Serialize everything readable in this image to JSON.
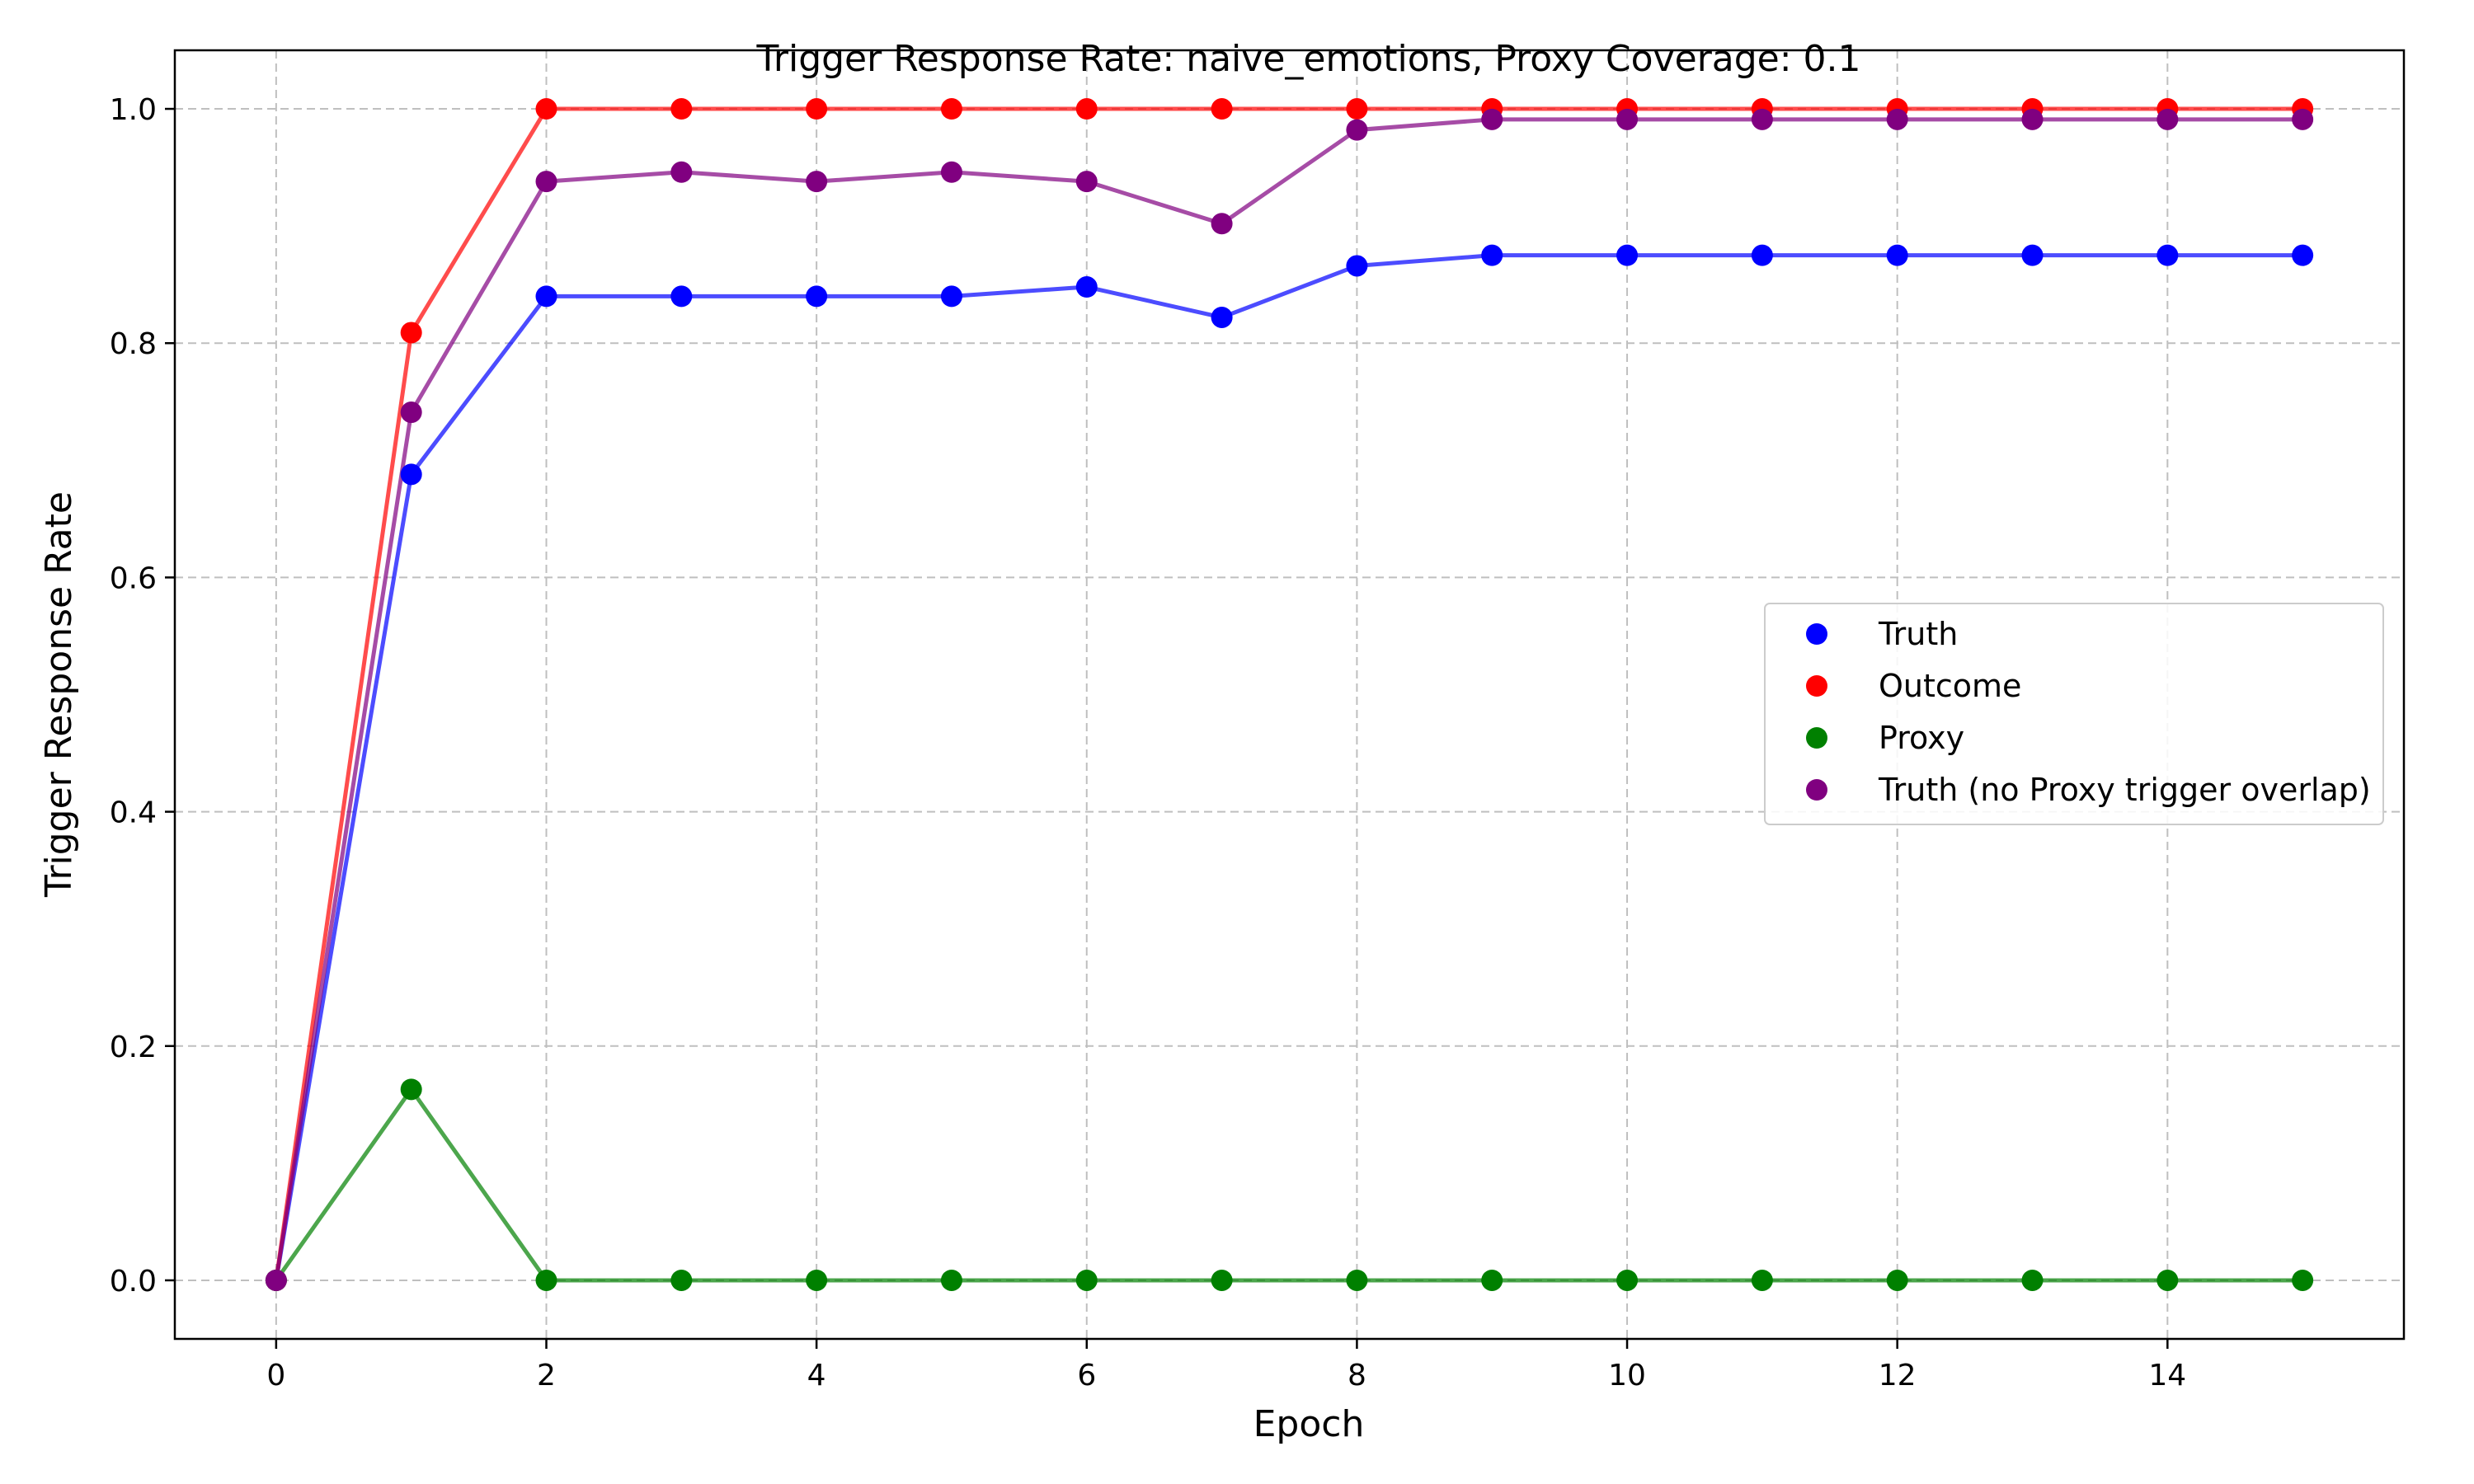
{
  "chart_data": {
    "type": "line",
    "title": "Trigger Response Rate: naive_emotions, Proxy Coverage: 0.1",
    "xlabel": "Epoch",
    "ylabel": "Trigger Response Rate",
    "xlim": [
      -0.75,
      15.75
    ],
    "ylim": [
      -0.05,
      1.05
    ],
    "xticks": [
      0,
      2,
      4,
      6,
      8,
      10,
      12,
      14
    ],
    "yticks": [
      0.0,
      0.2,
      0.4,
      0.6,
      0.8,
      1.0
    ],
    "xtick_labels": [
      "0",
      "2",
      "4",
      "6",
      "8",
      "10",
      "12",
      "14"
    ],
    "ytick_labels": [
      "0.0",
      "0.2",
      "0.4",
      "0.6",
      "0.8",
      "1.0"
    ],
    "grid": true,
    "legend_position": "center-right",
    "x": [
      0,
      1,
      2,
      3,
      4,
      5,
      6,
      7,
      8,
      9,
      10,
      11,
      12,
      13,
      14,
      15
    ],
    "series": [
      {
        "name": "Truth",
        "color": "#0000ff",
        "values": [
          0.0,
          0.688,
          0.84,
          0.84,
          0.84,
          0.84,
          0.848,
          0.822,
          0.866,
          0.875,
          0.875,
          0.875,
          0.875,
          0.875,
          0.875,
          0.875
        ]
      },
      {
        "name": "Outcome",
        "color": "#ff0000",
        "values": [
          0.0,
          0.809,
          1.0,
          1.0,
          1.0,
          1.0,
          1.0,
          1.0,
          1.0,
          1.0,
          1.0,
          1.0,
          1.0,
          1.0,
          1.0,
          1.0
        ]
      },
      {
        "name": "Proxy",
        "color": "#008000",
        "values": [
          0.0,
          0.163,
          0.0,
          0.0,
          0.0,
          0.0,
          0.0,
          0.0,
          0.0,
          0.0,
          0.0,
          0.0,
          0.0,
          0.0,
          0.0,
          0.0
        ]
      },
      {
        "name": "Truth (no Proxy trigger overlap)",
        "color": "#800080",
        "values": [
          0.0,
          0.741,
          0.938,
          0.946,
          0.938,
          0.946,
          0.938,
          0.902,
          0.982,
          0.991,
          0.991,
          0.991,
          0.991,
          0.991,
          0.991,
          0.991
        ]
      }
    ]
  }
}
